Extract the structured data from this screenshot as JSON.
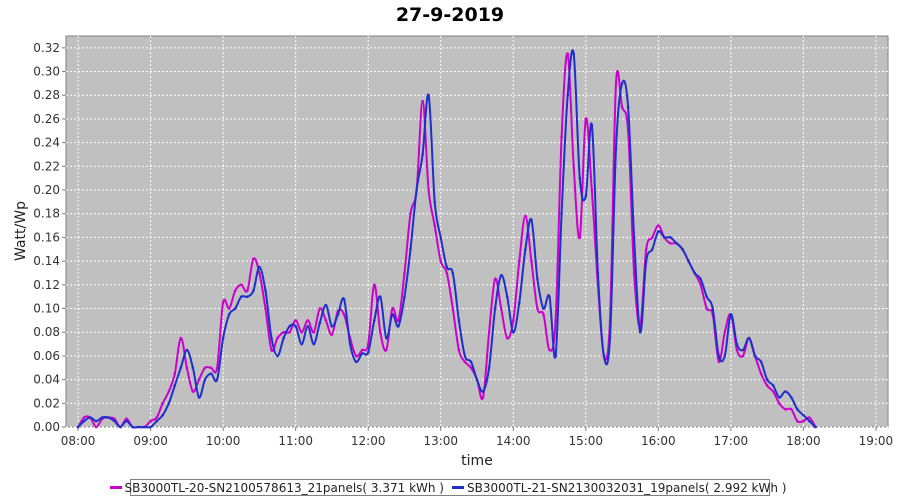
{
  "chart_data": {
    "type": "line",
    "title": "27-9-2019",
    "xlabel": "time",
    "ylabel": "Watt/Wp",
    "xlim": [
      "07:50",
      "19:10"
    ],
    "ylim": [
      0,
      0.33
    ],
    "grid": true,
    "legend_position": "bottom",
    "x_ticks": [
      "08:00",
      "09:00",
      "10:00",
      "11:00",
      "12:00",
      "13:00",
      "14:00",
      "15:00",
      "16:00",
      "17:00",
      "18:00",
      "19:00"
    ],
    "y_ticks": [
      "0.00",
      "0.02",
      "0.04",
      "0.06",
      "0.08",
      "0.10",
      "0.12",
      "0.14",
      "0.16",
      "0.18",
      "0.20",
      "0.22",
      "0.24",
      "0.26",
      "0.28",
      "0.30",
      "0.32"
    ],
    "colors": {
      "plot_bg": "#c0c0c0",
      "grid": "#ffffff"
    },
    "series": [
      {
        "name": "SB3000TL-20-SN2100578613_21panels( 3.371 kWh )",
        "color": "#cc00cc",
        "points": [
          [
            "08:00",
            0
          ],
          [
            "08:05",
            0.008
          ],
          [
            "08:10",
            0.008
          ],
          [
            "08:15",
            0
          ],
          [
            "08:20",
            0.007
          ],
          [
            "08:25",
            0.008
          ],
          [
            "08:30",
            0.007
          ],
          [
            "08:35",
            0
          ],
          [
            "08:40",
            0.007
          ],
          [
            "08:45",
            0
          ],
          [
            "08:50",
            0
          ],
          [
            "08:55",
            0
          ],
          [
            "09:00",
            0.005
          ],
          [
            "09:05",
            0.008
          ],
          [
            "09:10",
            0.02
          ],
          [
            "09:15",
            0.03
          ],
          [
            "09:20",
            0.045
          ],
          [
            "09:25",
            0.075
          ],
          [
            "09:30",
            0.05
          ],
          [
            "09:35",
            0.03
          ],
          [
            "09:40",
            0.04
          ],
          [
            "09:45",
            0.05
          ],
          [
            "09:50",
            0.05
          ],
          [
            "09:55",
            0.05
          ],
          [
            "10:00",
            0.105
          ],
          [
            "10:05",
            0.1
          ],
          [
            "10:10",
            0.115
          ],
          [
            "10:15",
            0.12
          ],
          [
            "10:20",
            0.115
          ],
          [
            "10:25",
            0.142
          ],
          [
            "10:30",
            0.13
          ],
          [
            "10:35",
            0.1
          ],
          [
            "10:40",
            0.065
          ],
          [
            "10:45",
            0.075
          ],
          [
            "10:50",
            0.08
          ],
          [
            "10:55",
            0.08
          ],
          [
            "11:00",
            0.09
          ],
          [
            "11:05",
            0.08
          ],
          [
            "11:10",
            0.09
          ],
          [
            "11:15",
            0.08
          ],
          [
            "11:20",
            0.1
          ],
          [
            "11:25",
            0.09
          ],
          [
            "11:30",
            0.078
          ],
          [
            "11:35",
            0.098
          ],
          [
            "11:40",
            0.095
          ],
          [
            "11:45",
            0.075
          ],
          [
            "11:50",
            0.06
          ],
          [
            "11:55",
            0.065
          ],
          [
            "12:00",
            0.07
          ],
          [
            "12:05",
            0.12
          ],
          [
            "12:10",
            0.08
          ],
          [
            "12:15",
            0.065
          ],
          [
            "12:20",
            0.1
          ],
          [
            "12:25",
            0.09
          ],
          [
            "12:30",
            0.13
          ],
          [
            "12:35",
            0.18
          ],
          [
            "12:40",
            0.2
          ],
          [
            "12:45",
            0.275
          ],
          [
            "12:50",
            0.2
          ],
          [
            "12:55",
            0.17
          ],
          [
            "13:00",
            0.14
          ],
          [
            "13:05",
            0.13
          ],
          [
            "13:10",
            0.1
          ],
          [
            "13:15",
            0.065
          ],
          [
            "13:20",
            0.055
          ],
          [
            "13:25",
            0.05
          ],
          [
            "13:30",
            0.04
          ],
          [
            "13:35",
            0.025
          ],
          [
            "13:40",
            0.08
          ],
          [
            "13:45",
            0.125
          ],
          [
            "13:50",
            0.1
          ],
          [
            "13:55",
            0.075
          ],
          [
            "14:00",
            0.09
          ],
          [
            "14:05",
            0.14
          ],
          [
            "14:10",
            0.178
          ],
          [
            "14:15",
            0.14
          ],
          [
            "14:20",
            0.1
          ],
          [
            "14:25",
            0.095
          ],
          [
            "14:30",
            0.065
          ],
          [
            "14:35",
            0.09
          ],
          [
            "14:40",
            0.245
          ],
          [
            "14:45",
            0.315
          ],
          [
            "14:50",
            0.22
          ],
          [
            "14:55",
            0.16
          ],
          [
            "15:00",
            0.26
          ],
          [
            "15:05",
            0.2
          ],
          [
            "15:10",
            0.12
          ],
          [
            "15:15",
            0.06
          ],
          [
            "15:20",
            0.09
          ],
          [
            "15:25",
            0.29
          ],
          [
            "15:30",
            0.27
          ],
          [
            "15:35",
            0.25
          ],
          [
            "15:40",
            0.13
          ],
          [
            "15:45",
            0.085
          ],
          [
            "15:50",
            0.15
          ],
          [
            "15:55",
            0.16
          ],
          [
            "16:00",
            0.17
          ],
          [
            "16:05",
            0.16
          ],
          [
            "16:10",
            0.155
          ],
          [
            "16:15",
            0.155
          ],
          [
            "16:20",
            0.15
          ],
          [
            "16:25",
            0.14
          ],
          [
            "16:30",
            0.13
          ],
          [
            "16:35",
            0.12
          ],
          [
            "16:40",
            0.1
          ],
          [
            "16:45",
            0.095
          ],
          [
            "16:50",
            0.055
          ],
          [
            "16:55",
            0.08
          ],
          [
            "17:00",
            0.095
          ],
          [
            "17:05",
            0.065
          ],
          [
            "17:10",
            0.06
          ],
          [
            "17:15",
            0.075
          ],
          [
            "17:20",
            0.06
          ],
          [
            "17:25",
            0.045
          ],
          [
            "17:30",
            0.035
          ],
          [
            "17:35",
            0.03
          ],
          [
            "17:40",
            0.02
          ],
          [
            "17:45",
            0.015
          ],
          [
            "17:50",
            0.015
          ],
          [
            "17:55",
            0.005
          ],
          [
            "18:00",
            0.005
          ],
          [
            "18:05",
            0.008
          ],
          [
            "18:10",
            0
          ]
        ]
      },
      {
        "name": "SB3000TL-21-SN2130032031_19panels( 2.992 kWh )",
        "color": "#1f2fcc",
        "points": [
          [
            "08:00",
            0
          ],
          [
            "08:05",
            0.005
          ],
          [
            "08:10",
            0.008
          ],
          [
            "08:15",
            0.005
          ],
          [
            "08:20",
            0.008
          ],
          [
            "08:25",
            0.008
          ],
          [
            "08:30",
            0.005
          ],
          [
            "08:35",
            0
          ],
          [
            "08:40",
            0.005
          ],
          [
            "08:45",
            0
          ],
          [
            "08:50",
            0
          ],
          [
            "08:55",
            0
          ],
          [
            "09:00",
            0
          ],
          [
            "09:05",
            0.005
          ],
          [
            "09:10",
            0.01
          ],
          [
            "09:15",
            0.02
          ],
          [
            "09:20",
            0.035
          ],
          [
            "09:25",
            0.05
          ],
          [
            "09:30",
            0.065
          ],
          [
            "09:35",
            0.05
          ],
          [
            "09:40",
            0.025
          ],
          [
            "09:45",
            0.04
          ],
          [
            "09:50",
            0.045
          ],
          [
            "09:55",
            0.04
          ],
          [
            "10:00",
            0.075
          ],
          [
            "10:05",
            0.095
          ],
          [
            "10:10",
            0.1
          ],
          [
            "10:15",
            0.11
          ],
          [
            "10:20",
            0.11
          ],
          [
            "10:25",
            0.115
          ],
          [
            "10:30",
            0.135
          ],
          [
            "10:35",
            0.115
          ],
          [
            "10:40",
            0.075
          ],
          [
            "10:45",
            0.06
          ],
          [
            "10:50",
            0.075
          ],
          [
            "10:55",
            0.085
          ],
          [
            "11:00",
            0.085
          ],
          [
            "11:05",
            0.07
          ],
          [
            "11:10",
            0.085
          ],
          [
            "11:15",
            0.07
          ],
          [
            "11:20",
            0.088
          ],
          [
            "11:25",
            0.103
          ],
          [
            "11:30",
            0.085
          ],
          [
            "11:35",
            0.095
          ],
          [
            "11:40",
            0.108
          ],
          [
            "11:45",
            0.07
          ],
          [
            "11:50",
            0.055
          ],
          [
            "11:55",
            0.062
          ],
          [
            "12:00",
            0.063
          ],
          [
            "12:05",
            0.09
          ],
          [
            "12:10",
            0.11
          ],
          [
            "12:15",
            0.075
          ],
          [
            "12:20",
            0.095
          ],
          [
            "12:25",
            0.085
          ],
          [
            "12:30",
            0.11
          ],
          [
            "12:35",
            0.15
          ],
          [
            "12:40",
            0.2
          ],
          [
            "12:45",
            0.23
          ],
          [
            "12:50",
            0.28
          ],
          [
            "12:55",
            0.19
          ],
          [
            "13:00",
            0.16
          ],
          [
            "13:05",
            0.135
          ],
          [
            "13:10",
            0.13
          ],
          [
            "13:15",
            0.09
          ],
          [
            "13:20",
            0.06
          ],
          [
            "13:25",
            0.055
          ],
          [
            "13:30",
            0.04
          ],
          [
            "13:35",
            0.03
          ],
          [
            "13:40",
            0.05
          ],
          [
            "13:45",
            0.1
          ],
          [
            "13:50",
            0.128
          ],
          [
            "13:55",
            0.11
          ],
          [
            "14:00",
            0.08
          ],
          [
            "14:05",
            0.105
          ],
          [
            "14:10",
            0.15
          ],
          [
            "14:15",
            0.175
          ],
          [
            "14:20",
            0.125
          ],
          [
            "14:25",
            0.1
          ],
          [
            "14:30",
            0.11
          ],
          [
            "14:35",
            0.06
          ],
          [
            "14:40",
            0.18
          ],
          [
            "14:45",
            0.28
          ],
          [
            "14:50",
            0.315
          ],
          [
            "14:55",
            0.21
          ],
          [
            "15:00",
            0.195
          ],
          [
            "15:05",
            0.255
          ],
          [
            "15:10",
            0.13
          ],
          [
            "15:15",
            0.06
          ],
          [
            "15:20",
            0.075
          ],
          [
            "15:25",
            0.235
          ],
          [
            "15:30",
            0.29
          ],
          [
            "15:35",
            0.27
          ],
          [
            "15:40",
            0.16
          ],
          [
            "15:45",
            0.08
          ],
          [
            "15:50",
            0.14
          ],
          [
            "15:55",
            0.15
          ],
          [
            "16:00",
            0.165
          ],
          [
            "16:05",
            0.16
          ],
          [
            "16:10",
            0.16
          ],
          [
            "16:15",
            0.155
          ],
          [
            "16:20",
            0.15
          ],
          [
            "16:25",
            0.14
          ],
          [
            "16:30",
            0.13
          ],
          [
            "16:35",
            0.125
          ],
          [
            "16:40",
            0.11
          ],
          [
            "16:45",
            0.1
          ],
          [
            "16:50",
            0.06
          ],
          [
            "16:55",
            0.06
          ],
          [
            "17:00",
            0.095
          ],
          [
            "17:05",
            0.07
          ],
          [
            "17:10",
            0.065
          ],
          [
            "17:15",
            0.075
          ],
          [
            "17:20",
            0.06
          ],
          [
            "17:25",
            0.055
          ],
          [
            "17:30",
            0.04
          ],
          [
            "17:35",
            0.035
          ],
          [
            "17:40",
            0.025
          ],
          [
            "17:45",
            0.03
          ],
          [
            "17:50",
            0.025
          ],
          [
            "17:55",
            0.015
          ],
          [
            "18:00",
            0.01
          ],
          [
            "18:05",
            0.005
          ],
          [
            "18:10",
            0
          ]
        ]
      }
    ]
  }
}
